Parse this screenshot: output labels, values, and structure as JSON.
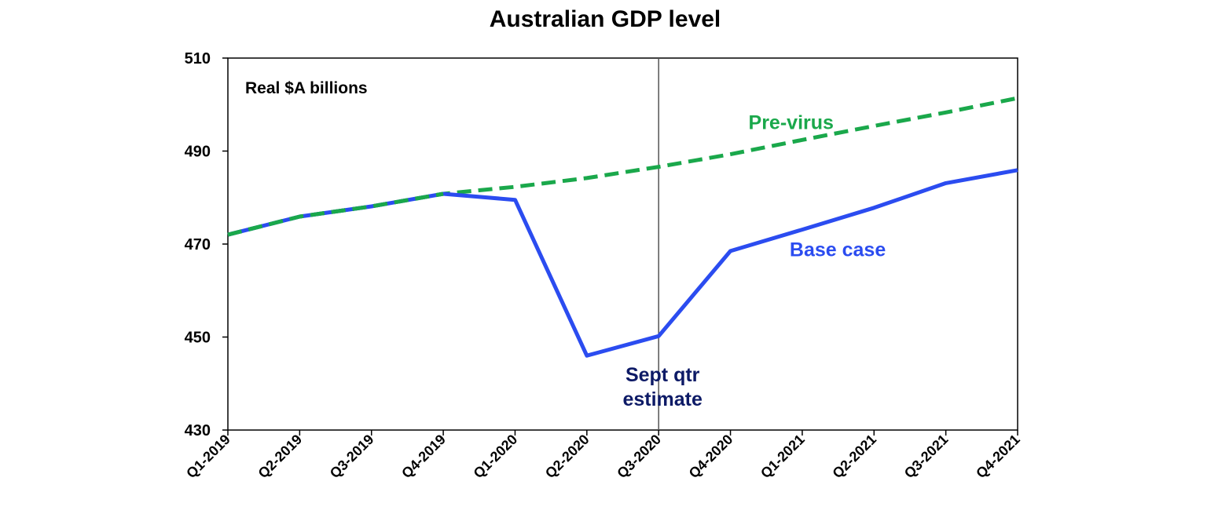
{
  "chart_data": {
    "type": "line",
    "title": "Australian GDP level",
    "unit_label": "Real $A billions",
    "categories": [
      "Q1-2019",
      "Q2-2019",
      "Q3-2019",
      "Q4-2019",
      "Q1-2020",
      "Q2-2020",
      "Q3-2020",
      "Q4-2020",
      "Q1-2021",
      "Q2-2021",
      "Q3-2021",
      "Q4-2021"
    ],
    "ylim": [
      430,
      510
    ],
    "yticks": [
      "430",
      "450",
      "470",
      "490",
      "510"
    ],
    "grid": false,
    "series": [
      {
        "name": "Pre-virus",
        "color": "#1aa84b",
        "style": "dashed",
        "values": [
          472,
          475.9,
          478.1,
          480.8,
          482.3,
          484.2,
          486.6,
          489.3,
          492.4,
          495.4,
          498.3,
          501.4
        ]
      },
      {
        "name": "Base case",
        "color": "#2b4cf0",
        "style": "solid",
        "values": [
          472,
          475.9,
          478.1,
          480.8,
          479.5,
          446,
          450.2,
          468.5,
          473.1,
          477.8,
          483.1,
          485.9
        ]
      }
    ],
    "annotations": [
      {
        "text": "Sept qtr",
        "category": "Q3-2020"
      },
      {
        "text": "estimate",
        "category": "Q3-2020"
      }
    ],
    "vertical_marker": "Q3-2020",
    "annotation_color": "#0d1a66"
  }
}
